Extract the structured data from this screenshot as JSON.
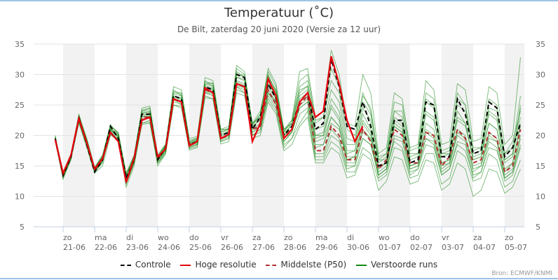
{
  "chart_data": {
    "type": "line",
    "title": "Temperatuur (˚C)",
    "subtitle": "De Bilt, zaterdag 20 juni 2020 (Versie za 12 uur)",
    "source": "Bron: ECMWF/KNMI",
    "ylim": [
      5,
      35
    ],
    "yticks": [
      "5",
      "10",
      "15",
      "20",
      "25",
      "30",
      "35"
    ],
    "ytick_values": [
      5,
      10,
      15,
      20,
      25,
      30,
      35
    ],
    "grid": true,
    "x_step_hours": 6,
    "x_start_offset_days": -0.25,
    "xticks": [
      {
        "day": "zo",
        "date": "21-06",
        "shaded": true
      },
      {
        "day": "ma",
        "date": "22-06",
        "shaded": false
      },
      {
        "day": "di",
        "date": "23-06",
        "shaded": true
      },
      {
        "day": "wo",
        "date": "24-06",
        "shaded": false
      },
      {
        "day": "do",
        "date": "25-06",
        "shaded": true
      },
      {
        "day": "vr",
        "date": "26-06",
        "shaded": false
      },
      {
        "day": "za",
        "date": "27-06",
        "shaded": true
      },
      {
        "day": "zo",
        "date": "28-06",
        "shaded": false
      },
      {
        "day": "ma",
        "date": "29-06",
        "shaded": true
      },
      {
        "day": "di",
        "date": "30-06",
        "shaded": false
      },
      {
        "day": "wo",
        "date": "01-07",
        "shaded": true
      },
      {
        "day": "do",
        "date": "02-07",
        "shaded": false
      },
      {
        "day": "vr",
        "date": "03-07",
        "shaded": true
      },
      {
        "day": "za",
        "date": "04-07",
        "shaded": false
      },
      {
        "day": "zo",
        "date": "05-07",
        "shaded": true
      }
    ],
    "legend_position": "bottom",
    "legend": [
      {
        "name": "Controle",
        "color": "#000000",
        "dash": true
      },
      {
        "name": "Hoge resolutie",
        "color": "#e8000b",
        "dash": false
      },
      {
        "name": "Middelste (P50)",
        "color": "#b03030",
        "dash": true
      },
      {
        "name": "Verstoorde runs",
        "color": "#138a13",
        "dash": false
      }
    ],
    "series": [
      {
        "name": "Controle",
        "values": [
          19.5,
          13.5,
          16.5,
          23,
          18.5,
          14,
          16,
          21.5,
          19.5,
          13,
          16,
          23.5,
          23.5,
          16,
          18,
          26.5,
          26,
          18.5,
          19,
          28,
          27.5,
          20,
          20.5,
          30,
          29.5,
          21,
          23,
          28.5,
          26,
          20,
          21.5,
          25.5,
          27,
          21,
          22,
          32.5,
          28,
          21.5,
          21,
          25.5,
          21.5,
          15,
          15.5,
          22.5,
          22.5,
          15.5,
          16,
          25.5,
          25,
          16.5,
          16.5,
          26,
          23.5,
          17,
          17.5,
          25.5,
          24.5,
          16.5,
          18,
          22
        ]
      },
      {
        "name": "Hoge resolutie",
        "values": [
          19.3,
          13.8,
          16.8,
          22.8,
          18.8,
          14.5,
          16.2,
          20.5,
          19,
          12.3,
          16.3,
          22.5,
          23,
          16.5,
          17.8,
          26,
          25.5,
          18.3,
          19,
          27.8,
          27,
          19.5,
          20.2,
          28.5,
          28,
          19,
          22,
          29.3,
          26.5,
          19.5,
          21,
          25.5,
          27,
          23,
          24,
          33,
          28.5,
          22.5,
          19,
          21.5
        ]
      },
      {
        "name": "Middelste (P50)",
        "values": [
          19.3,
          13.5,
          16.5,
          22.5,
          18.8,
          14.3,
          16.2,
          20.5,
          19,
          12.5,
          16,
          23,
          23,
          16.2,
          17.8,
          26,
          25.5,
          18.5,
          19,
          27.5,
          27,
          19.5,
          20,
          28.5,
          28,
          21,
          21.5,
          27.5,
          25,
          19.5,
          21,
          25,
          26.5,
          17.5,
          17.5,
          21.5,
          20,
          16,
          16,
          21,
          19,
          14.5,
          16,
          21,
          20,
          15.5,
          15.5,
          20.5,
          20,
          15,
          16.5,
          21,
          19.5,
          15.5,
          16,
          20.5,
          19.5,
          14,
          15,
          21
        ]
      }
    ],
    "members": [
      [
        20,
        13,
        16,
        23.5,
        19,
        14,
        15.5,
        21,
        20,
        12,
        15.5,
        24,
        24,
        15.5,
        17.5,
        27.5,
        26.5,
        18,
        18.5,
        29,
        28,
        21,
        21,
        31,
        30,
        22,
        24,
        30,
        27,
        20,
        22,
        28,
        29,
        22,
        23,
        31,
        28,
        21,
        20,
        27,
        24,
        16,
        16,
        24,
        24,
        17,
        17,
        27,
        26,
        17,
        17,
        27,
        25,
        18,
        18,
        26,
        25,
        17,
        19,
        24
      ],
      [
        19,
        12.8,
        16.2,
        22,
        18,
        13.8,
        15,
        20,
        19.5,
        11.5,
        15,
        22,
        22.5,
        15,
        17,
        26,
        25,
        18,
        18.5,
        27,
        26.5,
        19,
        19.5,
        28,
        27,
        20,
        21,
        26,
        24,
        18,
        19.5,
        22,
        24,
        16,
        16,
        19,
        18,
        14,
        14,
        18,
        17,
        12.5,
        13.5,
        18,
        17.5,
        13,
        13.5,
        17,
        17,
        12,
        13,
        17.5,
        16.5,
        12.5,
        13,
        17,
        16,
        11.5,
        12.5,
        16
      ],
      [
        19.8,
        13.6,
        16.8,
        22.8,
        19.2,
        14.6,
        16.5,
        21.5,
        20.5,
        13.5,
        16.5,
        24.5,
        24.8,
        16.5,
        18.5,
        28,
        27.5,
        19.5,
        19.8,
        29.5,
        29,
        21,
        21.5,
        31.5,
        30.5,
        21.5,
        23.5,
        31,
        28.5,
        20.5,
        22.5,
        30.5,
        31,
        23,
        24,
        34,
        30,
        22,
        21.5,
        30,
        27,
        17,
        18,
        27,
        26,
        18,
        18.5,
        29,
        27.5,
        18.5,
        19,
        28.5,
        27.5,
        19,
        19.5,
        28,
        27,
        18.5,
        20,
        32.8
      ],
      [
        19.2,
        13.2,
        16.4,
        22.4,
        18.6,
        14.2,
        16,
        20.8,
        19.2,
        12.6,
        15.8,
        22.8,
        23.2,
        16,
        17.6,
        25.8,
        25.5,
        18.2,
        18.8,
        27.2,
        27,
        19.4,
        20,
        28,
        27.5,
        20.5,
        21.5,
        27,
        25,
        19,
        20.5,
        24.5,
        25.5,
        18.5,
        18.5,
        22,
        21,
        16.5,
        16.5,
        22,
        20,
        15,
        15.5,
        21.5,
        20.5,
        15,
        15.5,
        21,
        20,
        15,
        15.5,
        21,
        20,
        15,
        15.5,
        20.5,
        19.5,
        14,
        15.5,
        21.5
      ],
      [
        19.6,
        13.9,
        16.9,
        23.2,
        19.5,
        14.8,
        16.8,
        21.8,
        20.2,
        13.8,
        16.8,
        24.2,
        24.5,
        16.8,
        18.6,
        27,
        26.8,
        19,
        19.5,
        28.5,
        28.5,
        20.5,
        21,
        30.5,
        29.5,
        22,
        23,
        29.5,
        27.5,
        21,
        22,
        27.5,
        28,
        20,
        20.5,
        26,
        24,
        17.5,
        17.5,
        24.5,
        22.5,
        15.5,
        16.5,
        23,
        22,
        16.5,
        17,
        23.5,
        22.5,
        16.5,
        17,
        22.5,
        21.5,
        16.5,
        17,
        22,
        21,
        15.5,
        16.5,
        25
      ],
      [
        19.4,
        13.4,
        16.6,
        22.6,
        18.2,
        13.9,
        15.8,
        20.2,
        19,
        12.2,
        15.5,
        22,
        22.2,
        15.5,
        17.2,
        25,
        24.5,
        17.8,
        18.2,
        26.5,
        26,
        19,
        19.5,
        27.5,
        27,
        20,
        20.5,
        26.5,
        24.5,
        18.5,
        19.5,
        23.5,
        24.5,
        16.5,
        16.5,
        20,
        19,
        14.5,
        15,
        19.5,
        18.5,
        13.5,
        14.5,
        19.5,
        19,
        14,
        14.5,
        19.5,
        18.5,
        13.5,
        14.5,
        19,
        18.5,
        13,
        14,
        19,
        18,
        12.5,
        13.5,
        18
      ],
      [
        19.7,
        13.7,
        16.7,
        23,
        18.9,
        14.4,
        16.3,
        21,
        19.8,
        13.2,
        16.2,
        23.8,
        23.8,
        16.3,
        18.2,
        26.5,
        26.2,
        18.8,
        19.2,
        28.2,
        27.8,
        20.2,
        20.8,
        29.5,
        29,
        21.5,
        22.5,
        28.5,
        26.5,
        20.5,
        21.5,
        26.5,
        27.5,
        19.5,
        20,
        24.5,
        22.5,
        17,
        17.5,
        23.5,
        21,
        14.5,
        15.5,
        22,
        21,
        14.5,
        15,
        24,
        23,
        15.5,
        16,
        24,
        22,
        16,
        16.5,
        24,
        23,
        16,
        17,
        23
      ],
      [
        19.1,
        13.1,
        16.1,
        22.2,
        18.4,
        14.1,
        15.9,
        20.6,
        19.3,
        12.4,
        15.7,
        22.6,
        22.8,
        15.8,
        17.5,
        25.5,
        25.2,
        18,
        18.6,
        27,
        26.8,
        19.2,
        19.8,
        28.2,
        27.8,
        20,
        21,
        27,
        25.5,
        19,
        20.5,
        25.5,
        26.5,
        18,
        18.5,
        23,
        21.5,
        15.5,
        15.5,
        20.5,
        19.5,
        13,
        14,
        20,
        19.5,
        14.5,
        15,
        19.5,
        19,
        14,
        15,
        20.5,
        19.5,
        14.5,
        15,
        20,
        19,
        13.5,
        14.5,
        20
      ],
      [
        19.9,
        14,
        17,
        23.4,
        19.4,
        14.7,
        16.6,
        21.6,
        20.4,
        13.6,
        16.6,
        24,
        24.4,
        16.6,
        18.4,
        27.2,
        27,
        19.2,
        19.6,
        28.8,
        28.6,
        20.8,
        21.2,
        30.2,
        29.8,
        21.8,
        23.5,
        30.5,
        28,
        21,
        22.5,
        29,
        30,
        22.5,
        23,
        29,
        27,
        19.5,
        19,
        26.5,
        24.5,
        16,
        17,
        25.5,
        25,
        17.5,
        18,
        26,
        25,
        17.5,
        18,
        25,
        24,
        17.5,
        18,
        24.5,
        24,
        17,
        18,
        26.5
      ],
      [
        19.3,
        13.3,
        16.3,
        22.4,
        18.6,
        14,
        15.7,
        20.4,
        19.1,
        12.1,
        15.4,
        21.8,
        22,
        15.4,
        17,
        25,
        24.8,
        17.6,
        18,
        26.2,
        26,
        18.6,
        19,
        27,
        26.5,
        19.5,
        20,
        25.5,
        23.5,
        17.5,
        18.5,
        21.5,
        23,
        15.5,
        15.5,
        18,
        17,
        13,
        13.5,
        17,
        16,
        11,
        12.5,
        16.5,
        16,
        12,
        12.5,
        16,
        15.5,
        11,
        12,
        15.5,
        14.5,
        10,
        11,
        14.5,
        14,
        10.5,
        11.5,
        14.5
      ],
      [
        19.5,
        13.6,
        16.6,
        22.7,
        18.8,
        14.3,
        16.1,
        20.9,
        19.6,
        12.9,
        16,
        23.2,
        23.4,
        16.1,
        17.9,
        26.2,
        25.9,
        18.6,
        19.1,
        27.8,
        27.4,
        19.8,
        20.4,
        29,
        28.5,
        21,
        22,
        28,
        26,
        20,
        21,
        26,
        27,
        19,
        19.5,
        23,
        21.5,
        16,
        16.5,
        21,
        19.5,
        13.5,
        14.5,
        22.5,
        21.5,
        15,
        15.5,
        22,
        21,
        15.5,
        16,
        23,
        22,
        16,
        16.5,
        22,
        21,
        14.5,
        15.5,
        22
      ],
      [
        19.6,
        13.5,
        16.4,
        22.9,
        19,
        14.2,
        16.4,
        21.2,
        19.9,
        12.8,
        16.1,
        23.4,
        23.6,
        16.2,
        18,
        26.4,
        26.1,
        18.7,
        19.3,
        28,
        27.6,
        20,
        20.6,
        29.6,
        29.2,
        22,
        23,
        29,
        26,
        20,
        21,
        25,
        26,
        20,
        20,
        25,
        23,
        16,
        16.5,
        22.5,
        20.5,
        14,
        15,
        21.5,
        20.5,
        15,
        15.5,
        20.5,
        19.5,
        14.5,
        15.5,
        20,
        19,
        14,
        15,
        19.5,
        19,
        13,
        14,
        19.5
      ],
      [
        19.2,
        13.3,
        16.5,
        22.3,
        18.5,
        14.4,
        16.2,
        21,
        19.7,
        12.7,
        15.9,
        23.1,
        23.2,
        15.9,
        17.7,
        26,
        25.7,
        18.4,
        18.9,
        27.4,
        27.2,
        19.6,
        20.2,
        28.8,
        28.2,
        20.5,
        21.5,
        27.5,
        25.5,
        19.5,
        20.5,
        24.5,
        25.5,
        17,
        17,
        21,
        19.5,
        15,
        15,
        19.5,
        18.5,
        13.5,
        14.5,
        19,
        18,
        13.5,
        14.5,
        18.5,
        18,
        13.5,
        14.5,
        18.5,
        17.5,
        13.5,
        14,
        18,
        17.5,
        13,
        14,
        18.5
      ],
      [
        19.8,
        13.8,
        16.8,
        23.1,
        19.1,
        14.6,
        16.6,
        21.4,
        20.1,
        13.4,
        16.4,
        23.6,
        23.9,
        16.4,
        18.3,
        26.8,
        26.5,
        18.9,
        19.4,
        28.4,
        28.2,
        20.6,
        21,
        30,
        29.6,
        21.2,
        22.8,
        29.8,
        27.2,
        20.8,
        22,
        27,
        28.2,
        21,
        21.5,
        27.5,
        25.5,
        18.5,
        18.5,
        25.5,
        23.5,
        16.5,
        17,
        24,
        23,
        16,
        16.5,
        25.5,
        24.5,
        17,
        17.5,
        26,
        25,
        17,
        17.5,
        23.5,
        22.5,
        16,
        17,
        24.5
      ]
    ]
  }
}
